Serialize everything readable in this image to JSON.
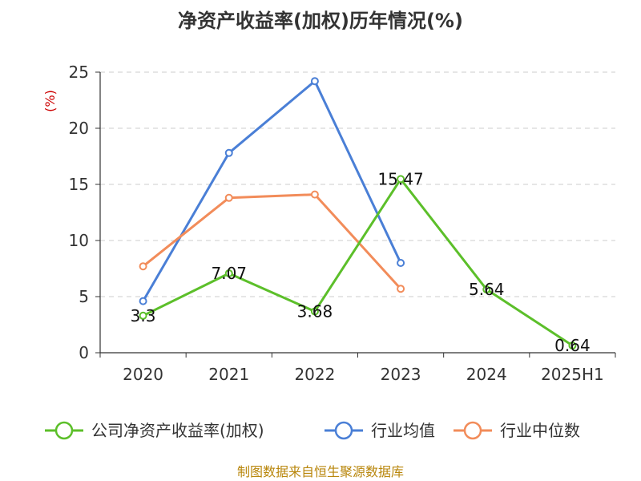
{
  "chart_data": {
    "type": "line",
    "title": "净资产收益率(加权)历年情况(%)",
    "ylabel": "(%)",
    "xlabel": "",
    "categories": [
      "2020",
      "2021",
      "2022",
      "2023",
      "2024",
      "2025H1"
    ],
    "ylim": [
      0,
      25
    ],
    "yticks": [
      0,
      5,
      10,
      15,
      20,
      25
    ],
    "grid": true,
    "legend_position": "bottom",
    "series": [
      {
        "name": "公司净资产收益率(加权)",
        "color": "#5cbf2a",
        "values": [
          3.3,
          7.07,
          3.68,
          15.47,
          5.64,
          0.64
        ],
        "labels": [
          "3.3",
          "7.07",
          "3.68",
          "15.47",
          "5.64",
          "0.64"
        ]
      },
      {
        "name": "行业均值",
        "color": "#4a7fd6",
        "values": [
          4.6,
          17.8,
          24.2,
          8.0,
          null,
          null
        ]
      },
      {
        "name": "行业中位数",
        "color": "#f28c5a",
        "values": [
          7.7,
          13.8,
          14.1,
          5.7,
          null,
          null
        ]
      }
    ]
  },
  "source": "制图数据来自恒生聚源数据库"
}
